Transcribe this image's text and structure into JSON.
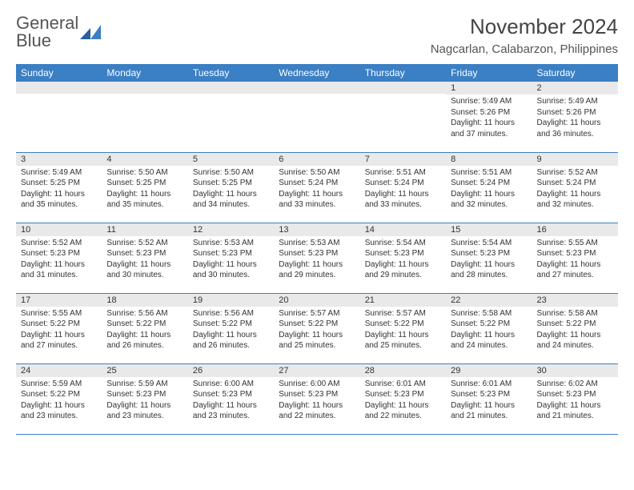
{
  "logo": {
    "line1": "General",
    "line2": "Blue"
  },
  "title": "November 2024",
  "location": "Nagcarlan, Calabarzon, Philippines",
  "colors": {
    "header_bg": "#3b7fc4",
    "header_fg": "#ffffff",
    "daynum_bg": "#e9e9e9",
    "border": "#3b7fc4",
    "text": "#333333",
    "logo_gray": "#555555",
    "logo_blue": "#3b7fc4",
    "page_bg": "#ffffff"
  },
  "day_names": [
    "Sunday",
    "Monday",
    "Tuesday",
    "Wednesday",
    "Thursday",
    "Friday",
    "Saturday"
  ],
  "weeks": [
    [
      {
        "n": "",
        "sr": "",
        "ss": "",
        "dl": ""
      },
      {
        "n": "",
        "sr": "",
        "ss": "",
        "dl": ""
      },
      {
        "n": "",
        "sr": "",
        "ss": "",
        "dl": ""
      },
      {
        "n": "",
        "sr": "",
        "ss": "",
        "dl": ""
      },
      {
        "n": "",
        "sr": "",
        "ss": "",
        "dl": ""
      },
      {
        "n": "1",
        "sr": "Sunrise: 5:49 AM",
        "ss": "Sunset: 5:26 PM",
        "dl": "Daylight: 11 hours and 37 minutes."
      },
      {
        "n": "2",
        "sr": "Sunrise: 5:49 AM",
        "ss": "Sunset: 5:26 PM",
        "dl": "Daylight: 11 hours and 36 minutes."
      }
    ],
    [
      {
        "n": "3",
        "sr": "Sunrise: 5:49 AM",
        "ss": "Sunset: 5:25 PM",
        "dl": "Daylight: 11 hours and 35 minutes."
      },
      {
        "n": "4",
        "sr": "Sunrise: 5:50 AM",
        "ss": "Sunset: 5:25 PM",
        "dl": "Daylight: 11 hours and 35 minutes."
      },
      {
        "n": "5",
        "sr": "Sunrise: 5:50 AM",
        "ss": "Sunset: 5:25 PM",
        "dl": "Daylight: 11 hours and 34 minutes."
      },
      {
        "n": "6",
        "sr": "Sunrise: 5:50 AM",
        "ss": "Sunset: 5:24 PM",
        "dl": "Daylight: 11 hours and 33 minutes."
      },
      {
        "n": "7",
        "sr": "Sunrise: 5:51 AM",
        "ss": "Sunset: 5:24 PM",
        "dl": "Daylight: 11 hours and 33 minutes."
      },
      {
        "n": "8",
        "sr": "Sunrise: 5:51 AM",
        "ss": "Sunset: 5:24 PM",
        "dl": "Daylight: 11 hours and 32 minutes."
      },
      {
        "n": "9",
        "sr": "Sunrise: 5:52 AM",
        "ss": "Sunset: 5:24 PM",
        "dl": "Daylight: 11 hours and 32 minutes."
      }
    ],
    [
      {
        "n": "10",
        "sr": "Sunrise: 5:52 AM",
        "ss": "Sunset: 5:23 PM",
        "dl": "Daylight: 11 hours and 31 minutes."
      },
      {
        "n": "11",
        "sr": "Sunrise: 5:52 AM",
        "ss": "Sunset: 5:23 PM",
        "dl": "Daylight: 11 hours and 30 minutes."
      },
      {
        "n": "12",
        "sr": "Sunrise: 5:53 AM",
        "ss": "Sunset: 5:23 PM",
        "dl": "Daylight: 11 hours and 30 minutes."
      },
      {
        "n": "13",
        "sr": "Sunrise: 5:53 AM",
        "ss": "Sunset: 5:23 PM",
        "dl": "Daylight: 11 hours and 29 minutes."
      },
      {
        "n": "14",
        "sr": "Sunrise: 5:54 AM",
        "ss": "Sunset: 5:23 PM",
        "dl": "Daylight: 11 hours and 29 minutes."
      },
      {
        "n": "15",
        "sr": "Sunrise: 5:54 AM",
        "ss": "Sunset: 5:23 PM",
        "dl": "Daylight: 11 hours and 28 minutes."
      },
      {
        "n": "16",
        "sr": "Sunrise: 5:55 AM",
        "ss": "Sunset: 5:23 PM",
        "dl": "Daylight: 11 hours and 27 minutes."
      }
    ],
    [
      {
        "n": "17",
        "sr": "Sunrise: 5:55 AM",
        "ss": "Sunset: 5:22 PM",
        "dl": "Daylight: 11 hours and 27 minutes."
      },
      {
        "n": "18",
        "sr": "Sunrise: 5:56 AM",
        "ss": "Sunset: 5:22 PM",
        "dl": "Daylight: 11 hours and 26 minutes."
      },
      {
        "n": "19",
        "sr": "Sunrise: 5:56 AM",
        "ss": "Sunset: 5:22 PM",
        "dl": "Daylight: 11 hours and 26 minutes."
      },
      {
        "n": "20",
        "sr": "Sunrise: 5:57 AM",
        "ss": "Sunset: 5:22 PM",
        "dl": "Daylight: 11 hours and 25 minutes."
      },
      {
        "n": "21",
        "sr": "Sunrise: 5:57 AM",
        "ss": "Sunset: 5:22 PM",
        "dl": "Daylight: 11 hours and 25 minutes."
      },
      {
        "n": "22",
        "sr": "Sunrise: 5:58 AM",
        "ss": "Sunset: 5:22 PM",
        "dl": "Daylight: 11 hours and 24 minutes."
      },
      {
        "n": "23",
        "sr": "Sunrise: 5:58 AM",
        "ss": "Sunset: 5:22 PM",
        "dl": "Daylight: 11 hours and 24 minutes."
      }
    ],
    [
      {
        "n": "24",
        "sr": "Sunrise: 5:59 AM",
        "ss": "Sunset: 5:22 PM",
        "dl": "Daylight: 11 hours and 23 minutes."
      },
      {
        "n": "25",
        "sr": "Sunrise: 5:59 AM",
        "ss": "Sunset: 5:23 PM",
        "dl": "Daylight: 11 hours and 23 minutes."
      },
      {
        "n": "26",
        "sr": "Sunrise: 6:00 AM",
        "ss": "Sunset: 5:23 PM",
        "dl": "Daylight: 11 hours and 23 minutes."
      },
      {
        "n": "27",
        "sr": "Sunrise: 6:00 AM",
        "ss": "Sunset: 5:23 PM",
        "dl": "Daylight: 11 hours and 22 minutes."
      },
      {
        "n": "28",
        "sr": "Sunrise: 6:01 AM",
        "ss": "Sunset: 5:23 PM",
        "dl": "Daylight: 11 hours and 22 minutes."
      },
      {
        "n": "29",
        "sr": "Sunrise: 6:01 AM",
        "ss": "Sunset: 5:23 PM",
        "dl": "Daylight: 11 hours and 21 minutes."
      },
      {
        "n": "30",
        "sr": "Sunrise: 6:02 AM",
        "ss": "Sunset: 5:23 PM",
        "dl": "Daylight: 11 hours and 21 minutes."
      }
    ]
  ]
}
